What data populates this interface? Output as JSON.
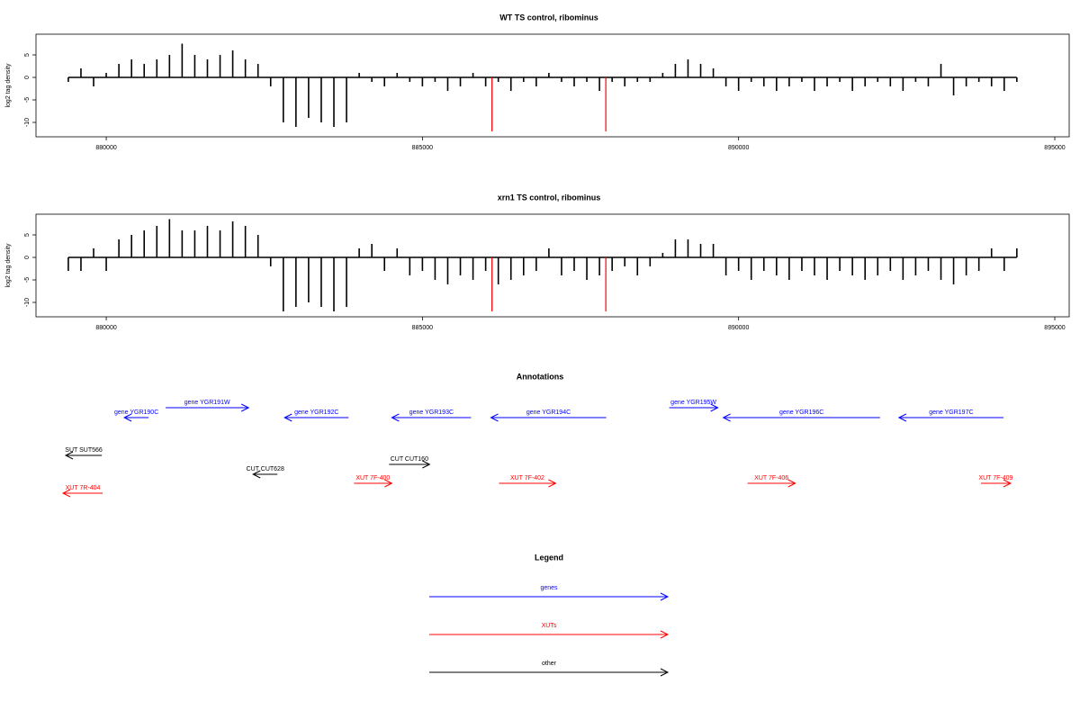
{
  "chart_data": [
    {
      "type": "bar",
      "title": "WT TS control, ribominus",
      "ylabel": "log2 tag density",
      "color": "#000000",
      "x": [
        879400,
        879600,
        879800,
        880000,
        880200,
        880400,
        880600,
        880800,
        881000,
        881200,
        881400,
        881600,
        881800,
        882000,
        882200,
        882400,
        882600,
        882800,
        883000,
        883200,
        883400,
        883600,
        883800,
        884000,
        884200,
        884400,
        884600,
        884800,
        885000,
        885200,
        885400,
        885600,
        885800,
        886000,
        886200,
        886400,
        886600,
        886800,
        887000,
        887200,
        887400,
        887600,
        887800,
        888000,
        888200,
        888400,
        888600,
        888800,
        889000,
        889200,
        889400,
        889600,
        889800,
        890000,
        890200,
        890400,
        890600,
        890800,
        891000,
        891200,
        891400,
        891600,
        891800,
        892000,
        892200,
        892400,
        892600,
        892800,
        893000,
        893200,
        893400,
        893600,
        893800,
        894000,
        894200,
        894400
      ],
      "values": [
        -1,
        2,
        -2,
        1,
        3,
        4,
        3,
        4,
        5,
        7.5,
        5,
        4,
        5,
        6,
        4,
        3,
        -2,
        -10,
        -11,
        -9,
        -10,
        -11,
        -10,
        1,
        -1,
        -2,
        1,
        -1,
        -2,
        -1,
        -3,
        -2,
        1,
        -2,
        -1,
        -3,
        -1,
        -2,
        1,
        -1,
        -2,
        -1,
        -3,
        -1,
        -2,
        -1,
        -1,
        1,
        3,
        4,
        3,
        2,
        -2,
        -3,
        -1,
        -2,
        -3,
        -2,
        -1,
        -3,
        -2,
        -1,
        -3,
        -2,
        -1,
        -2,
        -3,
        -1,
        -2,
        3,
        -4,
        -2,
        -1,
        -2,
        -3,
        -1
      ],
      "xlim": [
        878889,
        895228
      ],
      "ylim": [
        -13.2,
        9.6
      ],
      "xticks": [
        880000,
        885000,
        890000,
        895000
      ],
      "yticks": [
        -10,
        -5,
        0,
        5
      ],
      "highlights": {
        "color": "#ff0000",
        "x": [
          886100,
          887900
        ],
        "values": [
          -12,
          -12
        ]
      }
    },
    {
      "type": "bar",
      "title": "xrn1 TS control, ribominus",
      "ylabel": "log2 tag density",
      "color": "#000000",
      "x": [
        879400,
        879600,
        879800,
        880000,
        880200,
        880400,
        880600,
        880800,
        881000,
        881200,
        881400,
        881600,
        881800,
        882000,
        882200,
        882400,
        882600,
        882800,
        883000,
        883200,
        883400,
        883600,
        883800,
        884000,
        884200,
        884400,
        884600,
        884800,
        885000,
        885200,
        885400,
        885600,
        885800,
        886000,
        886200,
        886400,
        886600,
        886800,
        887000,
        887200,
        887400,
        887600,
        887800,
        888000,
        888200,
        888400,
        888600,
        888800,
        889000,
        889200,
        889400,
        889600,
        889800,
        890000,
        890200,
        890400,
        890600,
        890800,
        891000,
        891200,
        891400,
        891600,
        891800,
        892000,
        892200,
        892400,
        892600,
        892800,
        893000,
        893200,
        893400,
        893600,
        893800,
        894000,
        894200,
        894400
      ],
      "values": [
        -3,
        -3,
        2,
        -3,
        4,
        5,
        6,
        7,
        8.5,
        6,
        6,
        7,
        6,
        8,
        7,
        5,
        -2,
        -12,
        -11,
        -10,
        -11,
        -12,
        -11,
        2,
        3,
        -3,
        2,
        -4,
        -3,
        -5,
        -6,
        -4,
        -5,
        -3,
        -6,
        -5,
        -4,
        -3,
        2,
        -4,
        -3,
        -5,
        -4,
        -3,
        -2,
        -4,
        -2,
        1,
        4,
        4,
        3,
        3,
        -4,
        -3,
        -5,
        -3,
        -4,
        -5,
        -3,
        -4,
        -5,
        -3,
        -4,
        -5,
        -4,
        -3,
        -5,
        -4,
        -3,
        -5,
        -6,
        -4,
        -3,
        2,
        -3,
        2
      ],
      "xlim": [
        878889,
        895228
      ],
      "ylim": [
        -13.2,
        9.6
      ],
      "xticks": [
        880000,
        885000,
        890000,
        895000
      ],
      "yticks": [
        -10,
        -5,
        0,
        5
      ],
      "highlights": {
        "color": "#ff0000",
        "x": [
          886100,
          887900
        ],
        "values": [
          -12,
          -12
        ]
      }
    }
  ],
  "annotations": {
    "title": "Annotations",
    "features": [
      {
        "label": "gene YGR190C",
        "start": 880285,
        "end": 880670,
        "strand": "-",
        "kind": "genes"
      },
      {
        "label": "gene YGR191W",
        "start": 880940,
        "end": 882251,
        "strand": "+",
        "kind": "genes"
      },
      {
        "label": "gene YGR192C",
        "start": 882821,
        "end": 883832,
        "strand": "-",
        "kind": "genes"
      },
      {
        "label": "gene YGR193C",
        "start": 884516,
        "end": 885769,
        "strand": "-",
        "kind": "genes"
      },
      {
        "label": "gene YGR194C",
        "start": 886083,
        "end": 887906,
        "strand": "-",
        "kind": "genes"
      },
      {
        "label": "gene YGR195W",
        "start": 888903,
        "end": 889672,
        "strand": "+",
        "kind": "genes"
      },
      {
        "label": "gene YGR196C",
        "start": 889757,
        "end": 892236,
        "strand": "-",
        "kind": "genes"
      },
      {
        "label": "gene YGR197C",
        "start": 892536,
        "end": 894188,
        "strand": "-",
        "kind": "genes"
      },
      {
        "label": "SUT SUT566",
        "start": 879359,
        "end": 879929,
        "strand": "-",
        "kind": "other"
      },
      {
        "label": "CUT CUT628",
        "start": 882322,
        "end": 882707,
        "strand": "-",
        "kind": "other"
      },
      {
        "label": "CUT CUT160",
        "start": 884473,
        "end": 885114,
        "strand": "+",
        "kind": "other"
      },
      {
        "label": "XUT 7R-404",
        "start": 879316,
        "end": 879943,
        "strand": "-",
        "kind": "XUTs"
      },
      {
        "label": "XUT 7F-400",
        "start": 883917,
        "end": 884516,
        "strand": "+",
        "kind": "XUTs"
      },
      {
        "label": "XUT 7F-402",
        "start": 886211,
        "end": 887108,
        "strand": "+",
        "kind": "XUTs"
      },
      {
        "label": "XUT 7F-406",
        "start": 890142,
        "end": 890897,
        "strand": "+",
        "kind": "XUTs"
      },
      {
        "label": "XUT 7F-409",
        "start": 893832,
        "end": 894302,
        "strand": "+",
        "kind": "XUTs"
      }
    ]
  },
  "legend": {
    "title": "Legend",
    "items": [
      {
        "name": "genes",
        "color": "#0000ff"
      },
      {
        "name": "XUTs",
        "color": "#ff0000"
      },
      {
        "name": "other",
        "color": "#000000"
      }
    ]
  }
}
